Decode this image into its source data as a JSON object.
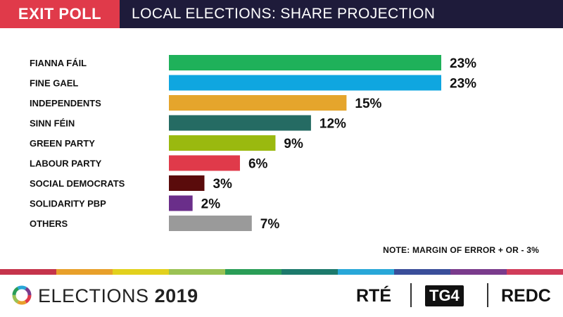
{
  "header": {
    "badge": "EXIT POLL",
    "title": "LOCAL ELECTIONS: SHARE PROJECTION"
  },
  "chart_data": {
    "type": "bar",
    "orientation": "horizontal",
    "title": "LOCAL ELECTIONS: SHARE PROJECTION",
    "categories": [
      "FIANNA FÁIL",
      "FINE GAEL",
      "INDEPENDENTS",
      "SINN FÉIN",
      "GREEN PARTY",
      "LABOUR PARTY",
      "SOCIAL DEMOCRATS",
      "SOLIDARITY PBP",
      "OTHERS"
    ],
    "values": [
      23,
      23,
      15,
      12,
      9,
      6,
      3,
      2,
      7
    ],
    "value_labels": [
      "23%",
      "23%",
      "15%",
      "12%",
      "9%",
      "6%",
      "3%",
      "2%",
      "7%"
    ],
    "colors": [
      "#1fb15a",
      "#0fa6e0",
      "#e5a52c",
      "#256b63",
      "#9ab90f",
      "#e03a4a",
      "#5a0b0b",
      "#6a2e8a",
      "#9a9a9a"
    ],
    "xlim": [
      0,
      23
    ],
    "grid": false,
    "xlabel": "",
    "ylabel": ""
  },
  "note": "NOTE: MARGIN OF ERROR + OR - 3%",
  "stripe_colors": [
    "#c5344b",
    "#e8a02a",
    "#e2d11d",
    "#9bc254",
    "#2a9d57",
    "#1d7a6c",
    "#28a7d8",
    "#3a4e9a",
    "#7a3b8c",
    "#d13c5a"
  ],
  "footer": {
    "brand": "ELECTIONS",
    "year": "2019",
    "broadcasters": [
      "RTÉ",
      "TG4",
      "REDC"
    ]
  }
}
